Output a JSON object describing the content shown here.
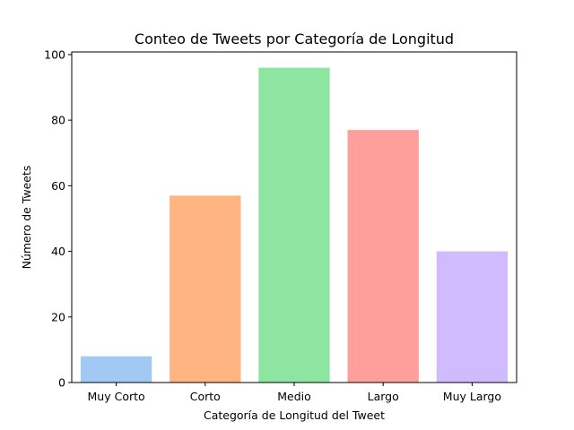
{
  "chart_data": {
    "type": "bar",
    "title": "Conteo de Tweets por Categoría de Longitud",
    "xlabel": "Categoría de Longitud del Tweet",
    "ylabel": "Número de Tweets",
    "categories": [
      "Muy Corto",
      "Corto",
      "Medio",
      "Largo",
      "Muy Largo"
    ],
    "values": [
      8,
      57,
      96,
      77,
      40
    ],
    "colors": [
      "#a1c9f4",
      "#ffb482",
      "#8de5a1",
      "#ff9f9b",
      "#d0bbff"
    ],
    "ylim": [
      0,
      100
    ],
    "yticks": [
      0,
      20,
      40,
      60,
      80,
      100
    ],
    "grid": false,
    "legend": "none"
  }
}
